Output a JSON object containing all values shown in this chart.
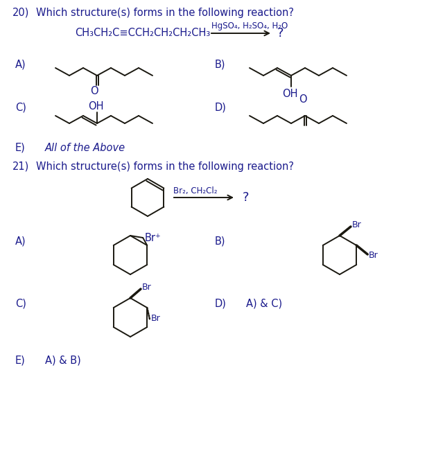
{
  "bg_color": "#ffffff",
  "text_color": "#1a1a8c",
  "fig_width": 6.29,
  "fig_height": 6.58,
  "dpi": 100,
  "q20_number": "20)",
  "q20_text": "Which structure(s) forms in the following reaction?",
  "q20_reactant": "CH₃CH₂C≡CCH₂CH₂CH₂CH₃",
  "q20_reagent": "HgSO₄, H₂SO₄, H₂O",
  "q20_product": "?",
  "q21_number": "21)",
  "q21_text": "Which structure(s) forms in the following reaction?",
  "q21_reagent": "Br₂, CH₂Cl₂",
  "q21_product": "?",
  "label_A": "A)",
  "label_B": "B)",
  "label_C": "C)",
  "label_D": "D)",
  "label_E": "E)",
  "q20_E_text": "All of the Above",
  "q21_D_text": "A) & C)",
  "q21_E_text": "A) & B)"
}
